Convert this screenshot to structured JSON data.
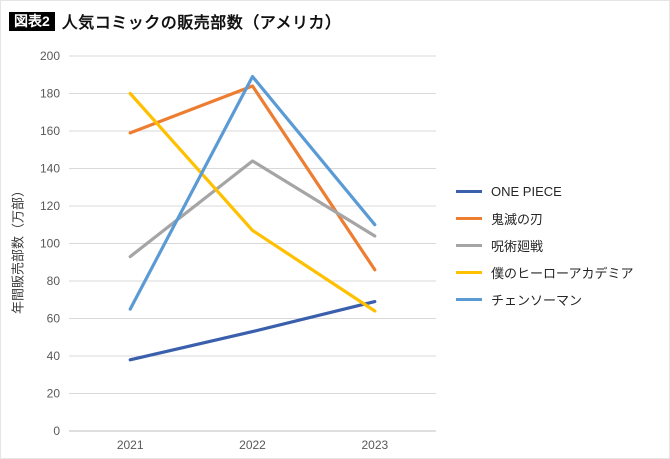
{
  "header": {
    "badge": "図表2",
    "title": "人気コミックの販売部数（アメリカ）"
  },
  "chart_data": {
    "type": "line",
    "categories": [
      "2021",
      "2022",
      "2023"
    ],
    "series": [
      {
        "name": "ONE PIECE",
        "color": "#3A60AD",
        "values": [
          38,
          53,
          69
        ]
      },
      {
        "name": "鬼滅の刃",
        "color": "#ED7D31",
        "values": [
          159,
          184,
          86
        ]
      },
      {
        "name": "呪術廻戦",
        "color": "#A5A5A5",
        "values": [
          93,
          144,
          104
        ]
      },
      {
        "name": "僕のヒーローアカデミア",
        "color": "#FFC000",
        "values": [
          180,
          107,
          64
        ]
      },
      {
        "name": "チェンソーマン",
        "color": "#5B9BD5",
        "values": [
          65,
          189,
          110
        ]
      }
    ],
    "title": "人気コミックの販売部数（アメリカ）",
    "xlabel": "",
    "ylabel": "年間販売部数（万部）",
    "ylim": [
      0,
      200
    ],
    "ytick_step": 20,
    "grid": true,
    "legend_position": "right",
    "colors": {
      "gridline": "#d9d9d9",
      "baseline": "#bfbfbf",
      "tick_text": "#595959"
    }
  }
}
